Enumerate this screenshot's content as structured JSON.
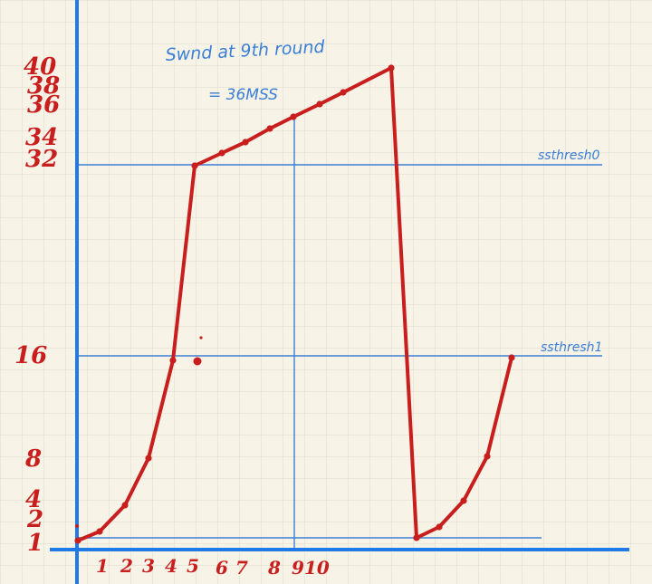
{
  "annotations": {
    "line1": "Swnd at 9th round",
    "line2": "= 36MSS",
    "ssthresh_upper": "ssthresh0",
    "ssthresh_lower": "ssthresh1"
  },
  "y_axis_labels": [
    "40",
    "38",
    "36",
    "34",
    "32",
    "16",
    "8",
    "4",
    "2",
    "1"
  ],
  "x_axis_labels": [
    "1",
    "2",
    "3",
    "4",
    "5",
    "6",
    "7",
    "8",
    "9",
    "10"
  ],
  "colors": {
    "paper": "#f7f3e6",
    "grid": "#ddd9cc",
    "axis": "#1f7ae8",
    "ink_red": "#c81e1e",
    "ink_blue": "#3b7fd6"
  }
}
